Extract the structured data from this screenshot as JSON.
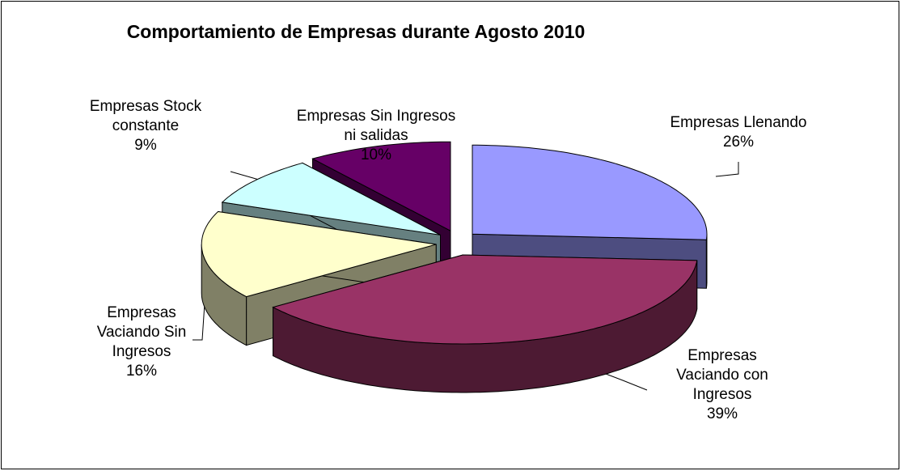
{
  "chart_data": {
    "type": "pie3d",
    "title": "Comportamiento de Empresas durante Agosto 2010",
    "categories": [
      "Empresas Llenando",
      "Empresas Vaciando con Ingresos",
      "Empresas Vaciando Sin Ingresos",
      "Empresas Stock constante",
      "Empresas Sin Ingresos ni salidas"
    ],
    "values": [
      26,
      39,
      16,
      9,
      10
    ],
    "value_labels": [
      "26%",
      "39%",
      "16%",
      "9%",
      "10%"
    ],
    "colors": [
      "#9999ff",
      "#993366",
      "#ffffcc",
      "#ccffff",
      "#660066"
    ]
  }
}
